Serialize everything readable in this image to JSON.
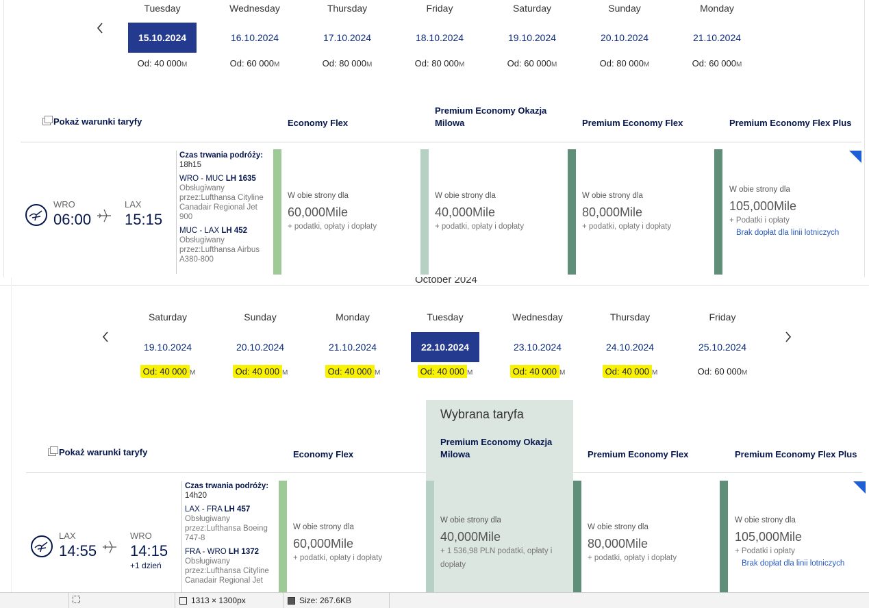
{
  "top": {
    "days": [
      {
        "name": "Tuesday",
        "date": "15.10.2024",
        "price": "Od: 40 000",
        "active": true
      },
      {
        "name": "Wednesday",
        "date": "16.10.2024",
        "price": "Od: 60 000"
      },
      {
        "name": "Thursday",
        "date": "17.10.2024",
        "price": "Od: 80 000"
      },
      {
        "name": "Friday",
        "date": "18.10.2024",
        "price": "Od: 80 000"
      },
      {
        "name": "Saturday",
        "date": "19.10.2024",
        "price": "Od: 60 000"
      },
      {
        "name": "Sunday",
        "date": "20.10.2024",
        "price": "Od: 80 000"
      },
      {
        "name": "Monday",
        "date": "21.10.2024",
        "price": "Od: 60 000"
      }
    ],
    "miles_unit": "M",
    "show_conditions": "Pokaż warunki taryfy",
    "fares": [
      "Economy Flex",
      "Premium Economy Okazja Milowa",
      "Premium Economy Flex",
      "Premium Economy Flex Plus"
    ],
    "flight": {
      "from_code": "WRO",
      "from_time": "06:00",
      "to_code": "LAX",
      "to_time": "15:15",
      "duration_label": "Czas trwania podróży:",
      "duration": "18h15",
      "seg1_route": "WRO - MUC",
      "seg1_no": "LH 1635",
      "seg1_op": "Obsługiwany przez:Lufthansa Cityline Canadair Regional Jet 900",
      "seg2_route": "MUC - LAX",
      "seg2_no": "LH 452",
      "seg2_op": "Obsługiwany przez:Lufthansa Airbus A380-800"
    },
    "cells": [
      {
        "label": "W obie strony dla",
        "miles": "60,000Mile",
        "tax": "+ podatki, opłaty i dopłaty"
      },
      {
        "label": "W obie strony dla",
        "miles": "40,000Mile",
        "tax": "+ podatki, opłaty i dopłaty"
      },
      {
        "label": "W obie strony dla",
        "miles": "80,000Mile",
        "tax": "+ podatki, opłaty i dopłaty"
      },
      {
        "label": "W obie strony dla",
        "miles": "105,000Mile",
        "tax": "+ Podatki i opłaty",
        "link": "Brak dopłat dla linii lotniczych"
      }
    ]
  },
  "bottom": {
    "month_partial": "October 2024",
    "days": [
      {
        "name": "Saturday",
        "date": "19.10.2024",
        "price": "Od: 40 000",
        "hl": true
      },
      {
        "name": "Sunday",
        "date": "20.10.2024",
        "price": "Od: 40 000",
        "hl": true
      },
      {
        "name": "Monday",
        "date": "21.10.2024",
        "price": "Od: 40 000",
        "hl": true
      },
      {
        "name": "Tuesday",
        "date": "22.10.2024",
        "price": "Od: 40 000",
        "hl": true,
        "active": true
      },
      {
        "name": "Wednesday",
        "date": "23.10.2024",
        "price": "Od: 40 000",
        "hl": true
      },
      {
        "name": "Thursday",
        "date": "24.10.2024",
        "price": "Od: 40 000",
        "hl": true
      },
      {
        "name": "Friday",
        "date": "25.10.2024",
        "price": "Od: 60 000"
      }
    ],
    "miles_unit": "M",
    "show_conditions": "Pokaż warunki taryfy",
    "selected_label": "Wybrana taryfa",
    "fares": [
      "Economy Flex",
      "Premium Economy Okazja Milowa",
      "Premium Economy Flex",
      "Premium Economy Flex Plus"
    ],
    "flight": {
      "from_code": "LAX",
      "from_time": "14:55",
      "to_code": "WRO",
      "to_time": "14:15",
      "next_day": "+1 dzień",
      "duration_label": "Czas trwania podróży:",
      "duration": "14h20",
      "seg1_route": "LAX - FRA",
      "seg1_no": "LH 457",
      "seg1_op": "Obsługiwany przez:Lufthansa Boeing 747-8",
      "seg2_route": "FRA - WRO",
      "seg2_no": "LH 1372",
      "seg2_op": "Obsługiwany przez:Lufthansa Cityline Canadair Regional Jet"
    },
    "cells": [
      {
        "label": "W obie strony dla",
        "miles": "60,000Mile",
        "tax": "+ podatki, opłaty i dopłaty"
      },
      {
        "label": "W obie strony dla",
        "miles": "40,000Mile",
        "tax": "+ 1 536,98 PLN podatki, opłaty i dopłaty"
      },
      {
        "label": "W obie strony dla",
        "miles": "80,000Mile",
        "tax": "+ podatki, opłaty i dopłaty"
      },
      {
        "label": "W obie strony dla",
        "miles": "105,000Mile",
        "tax": "+ Podatki i opłaty",
        "link": "Brak dopłat dla linii lotniczych"
      }
    ]
  },
  "statusbar": {
    "dims": "1313 × 1300px",
    "size": "Size: 267.6KB"
  },
  "colors": {
    "navy": "#05164d",
    "active_date": "#243a8e",
    "bar_economy": "#9fc996",
    "bar_okazja": "#b6d0c4",
    "bar_premium": "#5f8f78",
    "highlight": "#f8f100",
    "selected_bg": "#dbe6e0"
  }
}
